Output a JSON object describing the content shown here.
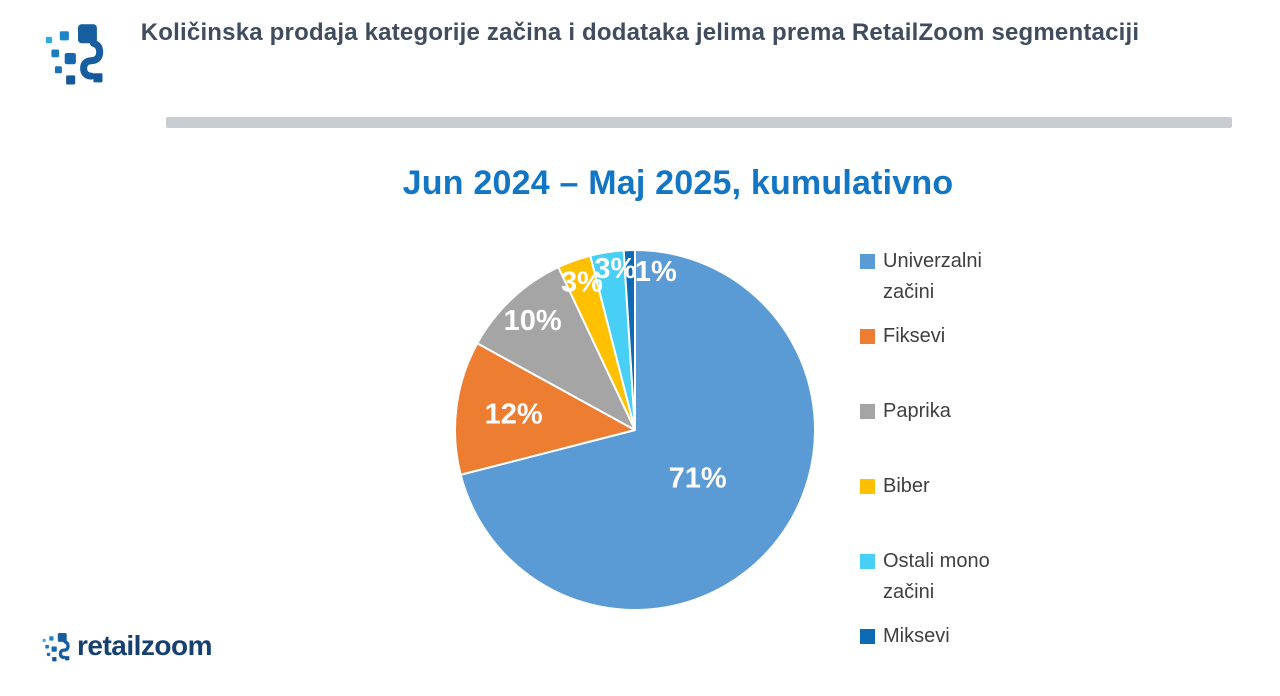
{
  "page": {
    "background": "#FFFFFF"
  },
  "header": {
    "title": "Količinska prodaja kategorije začina i dodataka jelima prema RetailZoom segmentaciji",
    "logo_name": "retailzoom-pixel-mark"
  },
  "chart": {
    "title": "Jun 2024 – Maj 2025, kumulativno"
  },
  "footer": {
    "brand": "retailzoom"
  },
  "colors": {
    "chart_title_blue": "#1276C4",
    "header_text": "#3F4D5F",
    "legend_text": "#3F3F3F",
    "divider_gray": "#C9CCD3",
    "brand_navy": "#16406F",
    "pie_label_white": "#FFFFFF"
  },
  "chart_data": {
    "type": "pie",
    "title": "Jun 2024 – Maj 2025, kumulativno",
    "value_unit": "percent",
    "start_angle_deg": 0,
    "direction": "clockwise",
    "legend_position": "right",
    "slices": [
      {
        "label": "Univerzalni začini",
        "value": 71,
        "display": "71%",
        "color": "#5B9BD5"
      },
      {
        "label": "Fiksevi",
        "value": 12,
        "display": "12%",
        "color": "#ED7D31"
      },
      {
        "label": "Paprika",
        "value": 10,
        "display": "10%",
        "color": "#A5A5A5"
      },
      {
        "label": "Biber",
        "value": 3,
        "display": "3%",
        "color": "#FFC000"
      },
      {
        "label": "Ostali mono začini",
        "value": 3,
        "display": "3%",
        "color": "#47CFF5"
      },
      {
        "label": "Miksevi",
        "value": 1,
        "display": "1%",
        "color": "#0F6AB4"
      }
    ],
    "label_layout": [
      {
        "r": 0.44
      },
      {
        "r": 0.68
      },
      {
        "r": 0.83
      },
      {
        "r": 0.87
      },
      {
        "r": 0.9,
        "angle": 353
      },
      {
        "r": 0.885,
        "angle": 7.5
      }
    ]
  }
}
